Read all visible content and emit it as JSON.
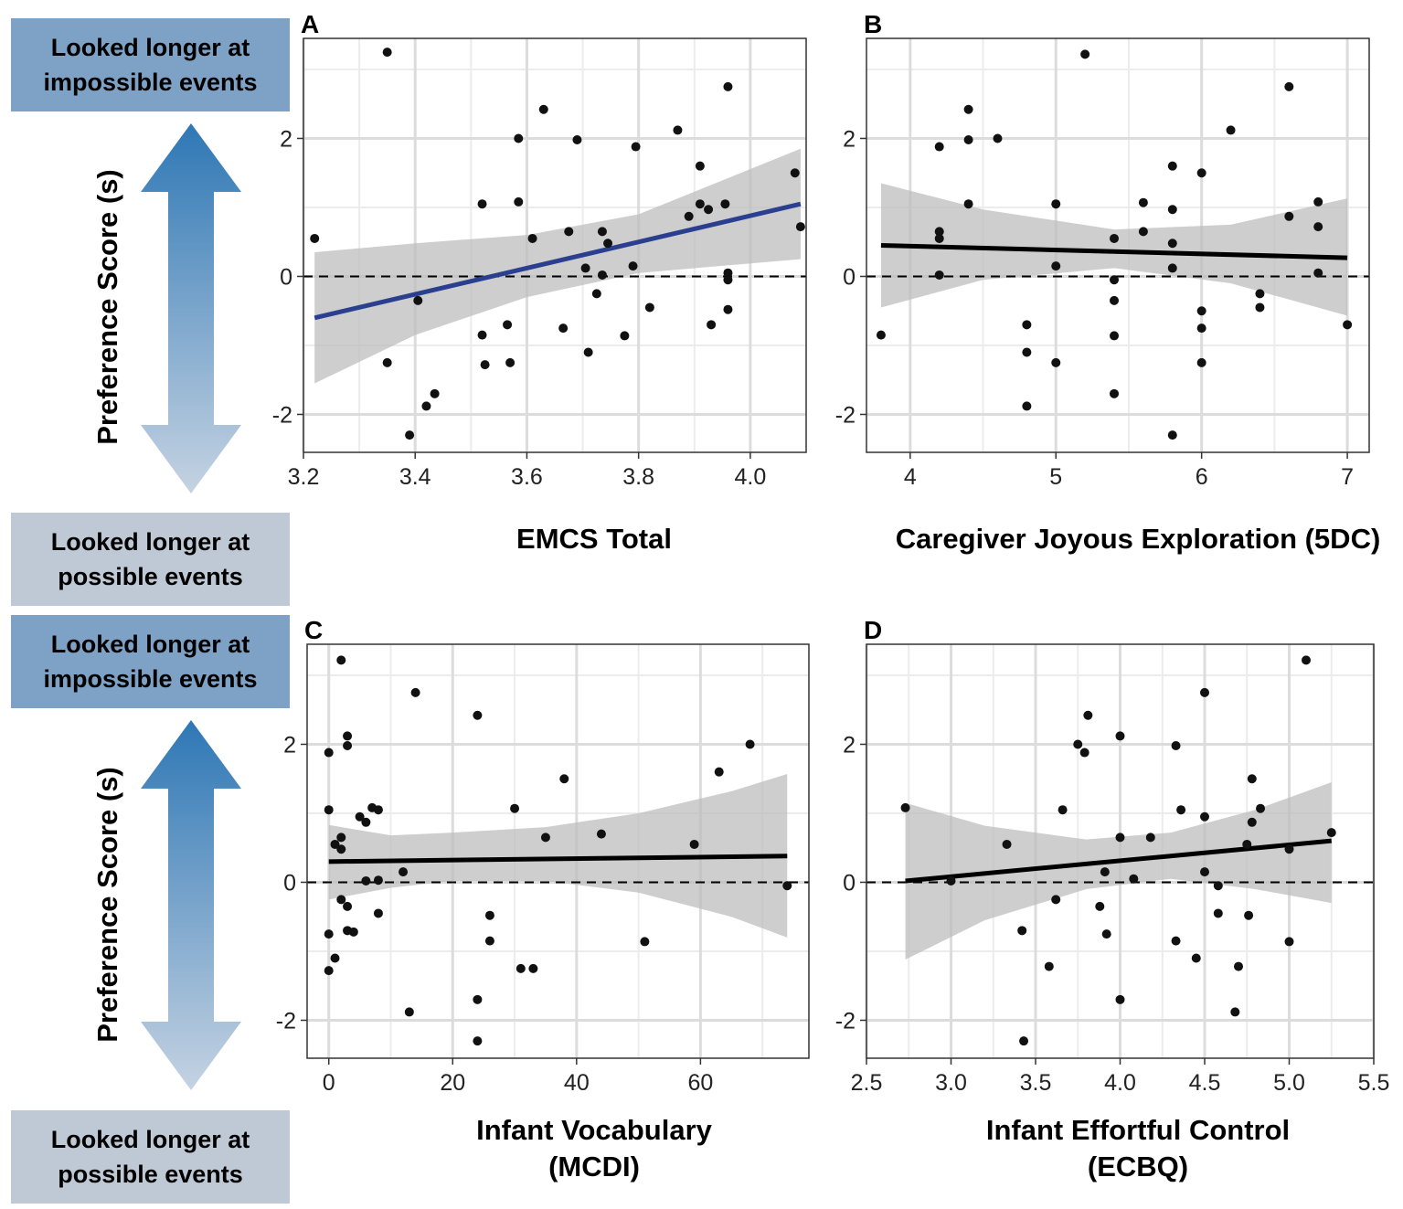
{
  "side_labels": {
    "top": "Looked longer at impossible events",
    "bottom": "Looked longer at possible events",
    "axis": "Preference Score (s)"
  },
  "colors": {
    "blue_line": "#2a3f8f",
    "black_line": "#000000",
    "ribbon": "#bdbdbd",
    "arrow_dark": "#2e77b5",
    "arrow_light": "#c5d3e2"
  },
  "chart_data": [
    {
      "panel": "A",
      "type": "scatter",
      "xlabel": "EMCS Total",
      "ylabel": "Preference Score (s)",
      "xlim": [
        3.2,
        4.1
      ],
      "ylim": [
        -2.55,
        3.45
      ],
      "xticks": [
        3.2,
        3.4,
        3.6,
        3.8,
        4.0
      ],
      "xticklabels": [
        "3.2",
        "3.4",
        "3.6",
        "3.8",
        "4.0"
      ],
      "yticks": [
        -2,
        0,
        2
      ],
      "yticklabels": [
        "-2",
        "0",
        "2"
      ],
      "fit": {
        "x": [
          3.22,
          4.09
        ],
        "y": [
          -0.6,
          1.05
        ],
        "color": "#2a3f8f"
      },
      "ribbon": {
        "x": [
          3.22,
          3.4,
          3.6,
          3.8,
          4.09
        ],
        "lower": [
          -1.55,
          -0.85,
          -0.3,
          0.05,
          0.25
        ],
        "upper": [
          0.35,
          0.48,
          0.6,
          0.9,
          1.85
        ]
      },
      "points": [
        [
          3.22,
          0.55
        ],
        [
          3.35,
          3.25
        ],
        [
          3.35,
          -1.25
        ],
        [
          3.39,
          -2.3
        ],
        [
          3.405,
          -0.35
        ],
        [
          3.42,
          -1.88
        ],
        [
          3.435,
          -1.7
        ],
        [
          3.52,
          1.05
        ],
        [
          3.52,
          -0.85
        ],
        [
          3.525,
          -1.28
        ],
        [
          3.565,
          -0.7
        ],
        [
          3.57,
          -1.25
        ],
        [
          3.585,
          2.0
        ],
        [
          3.585,
          1.08
        ],
        [
          3.61,
          0.55
        ],
        [
          3.63,
          2.42
        ],
        [
          3.665,
          -0.75
        ],
        [
          3.675,
          0.65
        ],
        [
          3.69,
          1.98
        ],
        [
          3.705,
          0.12
        ],
        [
          3.71,
          -1.1
        ],
        [
          3.725,
          -0.25
        ],
        [
          3.735,
          0.65
        ],
        [
          3.735,
          0.02
        ],
        [
          3.745,
          0.48
        ],
        [
          3.775,
          -0.86
        ],
        [
          3.79,
          0.15
        ],
        [
          3.795,
          1.88
        ],
        [
          3.82,
          -0.45
        ],
        [
          3.87,
          2.12
        ],
        [
          3.89,
          0.87
        ],
        [
          3.91,
          1.6
        ],
        [
          3.91,
          1.05
        ],
        [
          3.925,
          0.97
        ],
        [
          3.93,
          -0.7
        ],
        [
          3.955,
          1.05
        ],
        [
          3.96,
          2.75
        ],
        [
          3.96,
          0.05
        ],
        [
          3.96,
          -0.05
        ],
        [
          3.96,
          -0.48
        ],
        [
          4.08,
          1.5
        ],
        [
          4.09,
          0.72
        ]
      ]
    },
    {
      "panel": "B",
      "type": "scatter",
      "xlabel": "Caregiver Joyous Exploration (5DC)",
      "ylabel": "",
      "xlim": [
        3.7,
        7.15
      ],
      "ylim": [
        -2.55,
        3.45
      ],
      "xticks": [
        4,
        5,
        6,
        7
      ],
      "xticklabels": [
        "4",
        "5",
        "6",
        "7"
      ],
      "yticks": [
        -2,
        0,
        2
      ],
      "yticklabels": [
        "-2",
        "0",
        "2"
      ],
      "fit": {
        "x": [
          3.8,
          7.0
        ],
        "y": [
          0.45,
          0.27
        ],
        "color": "#000000"
      },
      "ribbon": {
        "x": [
          3.8,
          4.5,
          5.4,
          6.2,
          7.0
        ],
        "lower": [
          -0.45,
          -0.05,
          0.12,
          -0.1,
          -0.57
        ],
        "upper": [
          1.35,
          0.97,
          0.68,
          0.75,
          1.13
        ]
      },
      "points": [
        [
          3.8,
          -0.85
        ],
        [
          4.2,
          1.88
        ],
        [
          4.2,
          0.65
        ],
        [
          4.2,
          0.55
        ],
        [
          4.2,
          0.02
        ],
        [
          4.4,
          2.42
        ],
        [
          4.4,
          1.98
        ],
        [
          4.4,
          1.05
        ],
        [
          4.6,
          2.0
        ],
        [
          4.8,
          -0.7
        ],
        [
          4.8,
          -1.1
        ],
        [
          4.8,
          -1.88
        ],
        [
          5.0,
          1.05
        ],
        [
          5.0,
          0.15
        ],
        [
          5.0,
          -1.25
        ],
        [
          5.2,
          3.22
        ],
        [
          5.4,
          0.55
        ],
        [
          5.4,
          -0.05
        ],
        [
          5.4,
          -0.35
        ],
        [
          5.4,
          -0.86
        ],
        [
          5.4,
          -1.7
        ],
        [
          5.6,
          1.07
        ],
        [
          5.6,
          0.65
        ],
        [
          5.8,
          1.6
        ],
        [
          5.8,
          0.97
        ],
        [
          5.8,
          0.48
        ],
        [
          5.8,
          0.12
        ],
        [
          5.8,
          -2.3
        ],
        [
          6.0,
          1.5
        ],
        [
          6.0,
          -0.5
        ],
        [
          6.0,
          -0.75
        ],
        [
          6.0,
          -1.25
        ],
        [
          6.2,
          2.12
        ],
        [
          6.4,
          -0.25
        ],
        [
          6.4,
          -0.45
        ],
        [
          6.6,
          2.75
        ],
        [
          6.6,
          0.87
        ],
        [
          6.8,
          1.08
        ],
        [
          6.8,
          0.72
        ],
        [
          6.8,
          0.05
        ],
        [
          7.0,
          -0.7
        ]
      ]
    },
    {
      "panel": "C",
      "type": "scatter",
      "xlabel": "Infant Vocabulary (MCDI)",
      "ylabel": "Preference Score (s)",
      "xlim": [
        -3.5,
        77.5
      ],
      "ylim": [
        -2.55,
        3.45
      ],
      "xticks": [
        0,
        20,
        40,
        60
      ],
      "xticklabels": [
        "0",
        "20",
        "40",
        "60"
      ],
      "yticks": [
        -2,
        0,
        2
      ],
      "yticklabels": [
        "-2",
        "0",
        "2"
      ],
      "fit": {
        "x": [
          0,
          74
        ],
        "y": [
          0.3,
          0.38
        ],
        "color": "#000000"
      },
      "ribbon": {
        "x": [
          0,
          10,
          20,
          35,
          50,
          65,
          74
        ],
        "lower": [
          -0.25,
          -0.08,
          0.02,
          0.02,
          -0.15,
          -0.5,
          -0.8
        ],
        "upper": [
          0.83,
          0.68,
          0.72,
          0.8,
          1.0,
          1.32,
          1.57
        ]
      },
      "points": [
        [
          0,
          1.88
        ],
        [
          0,
          1.05
        ],
        [
          0,
          -0.75
        ],
        [
          0,
          -1.28
        ],
        [
          1,
          0.55
        ],
        [
          1,
          -1.1
        ],
        [
          2,
          3.22
        ],
        [
          2,
          0.65
        ],
        [
          2,
          0.48
        ],
        [
          2,
          -0.25
        ],
        [
          3,
          2.12
        ],
        [
          3,
          1.98
        ],
        [
          3,
          -0.35
        ],
        [
          3,
          -0.7
        ],
        [
          4,
          -0.72
        ],
        [
          5,
          0.95
        ],
        [
          6,
          0.87
        ],
        [
          6,
          0.02
        ],
        [
          7,
          1.08
        ],
        [
          8,
          1.05
        ],
        [
          8,
          0.03
        ],
        [
          8,
          -0.45
        ],
        [
          12,
          0.15
        ],
        [
          13,
          -1.88
        ],
        [
          14,
          2.75
        ],
        [
          24,
          2.42
        ],
        [
          24,
          -1.7
        ],
        [
          24,
          -2.3
        ],
        [
          26,
          -0.48
        ],
        [
          26,
          -0.85
        ],
        [
          30,
          1.07
        ],
        [
          31,
          -1.25
        ],
        [
          33,
          -1.25
        ],
        [
          35,
          0.65
        ],
        [
          38,
          1.5
        ],
        [
          44,
          0.7
        ],
        [
          51,
          -0.86
        ],
        [
          59,
          0.55
        ],
        [
          63,
          1.6
        ],
        [
          68,
          2.0
        ],
        [
          74,
          -0.05
        ]
      ]
    },
    {
      "panel": "D",
      "type": "scatter",
      "xlabel": "Infant Effortful Control (ECBQ)",
      "ylabel": "",
      "xlim": [
        2.5,
        5.5
      ],
      "ylim": [
        -2.55,
        3.45
      ],
      "xticks": [
        2.5,
        3.0,
        3.5,
        4.0,
        4.5,
        5.0,
        5.5
      ],
      "xticklabels": [
        "2.5",
        "3.0",
        "3.5",
        "4.0",
        "4.5",
        "5.0",
        "5.5"
      ],
      "yticks": [
        -2,
        0,
        2
      ],
      "yticklabels": [
        "-2",
        "0",
        "2"
      ],
      "fit": {
        "x": [
          2.73,
          5.25
        ],
        "y": [
          0.02,
          0.6
        ],
        "color": "#000000"
      },
      "ribbon": {
        "x": [
          2.73,
          3.2,
          3.8,
          4.3,
          4.8,
          5.25
        ],
        "lower": [
          -1.12,
          -0.55,
          -0.1,
          0.05,
          -0.1,
          -0.3
        ],
        "upper": [
          1.15,
          0.82,
          0.62,
          0.72,
          1.05,
          1.45
        ]
      },
      "points": [
        [
          2.73,
          1.08
        ],
        [
          3.0,
          0.02
        ],
        [
          3.33,
          0.55
        ],
        [
          3.42,
          -0.7
        ],
        [
          3.43,
          -2.3
        ],
        [
          3.58,
          -1.22
        ],
        [
          3.62,
          -0.25
        ],
        [
          3.66,
          1.05
        ],
        [
          3.75,
          2.0
        ],
        [
          3.79,
          1.88
        ],
        [
          3.81,
          2.42
        ],
        [
          3.88,
          -0.35
        ],
        [
          3.91,
          0.15
        ],
        [
          3.92,
          -0.75
        ],
        [
          4.0,
          2.12
        ],
        [
          4.0,
          0.65
        ],
        [
          4.0,
          -1.7
        ],
        [
          4.08,
          0.05
        ],
        [
          4.18,
          0.65
        ],
        [
          4.33,
          1.98
        ],
        [
          4.33,
          -0.85
        ],
        [
          4.36,
          1.05
        ],
        [
          4.45,
          -1.1
        ],
        [
          4.5,
          2.75
        ],
        [
          4.5,
          0.95
        ],
        [
          4.5,
          0.15
        ],
        [
          4.58,
          -0.05
        ],
        [
          4.58,
          -0.45
        ],
        [
          4.68,
          -1.88
        ],
        [
          4.7,
          -1.22
        ],
        [
          4.75,
          0.55
        ],
        [
          4.76,
          -0.48
        ],
        [
          4.78,
          1.5
        ],
        [
          4.78,
          0.87
        ],
        [
          4.83,
          1.07
        ],
        [
          5.0,
          0.48
        ],
        [
          5.0,
          -0.86
        ],
        [
          5.1,
          3.22
        ],
        [
          5.25,
          0.72
        ]
      ]
    }
  ]
}
